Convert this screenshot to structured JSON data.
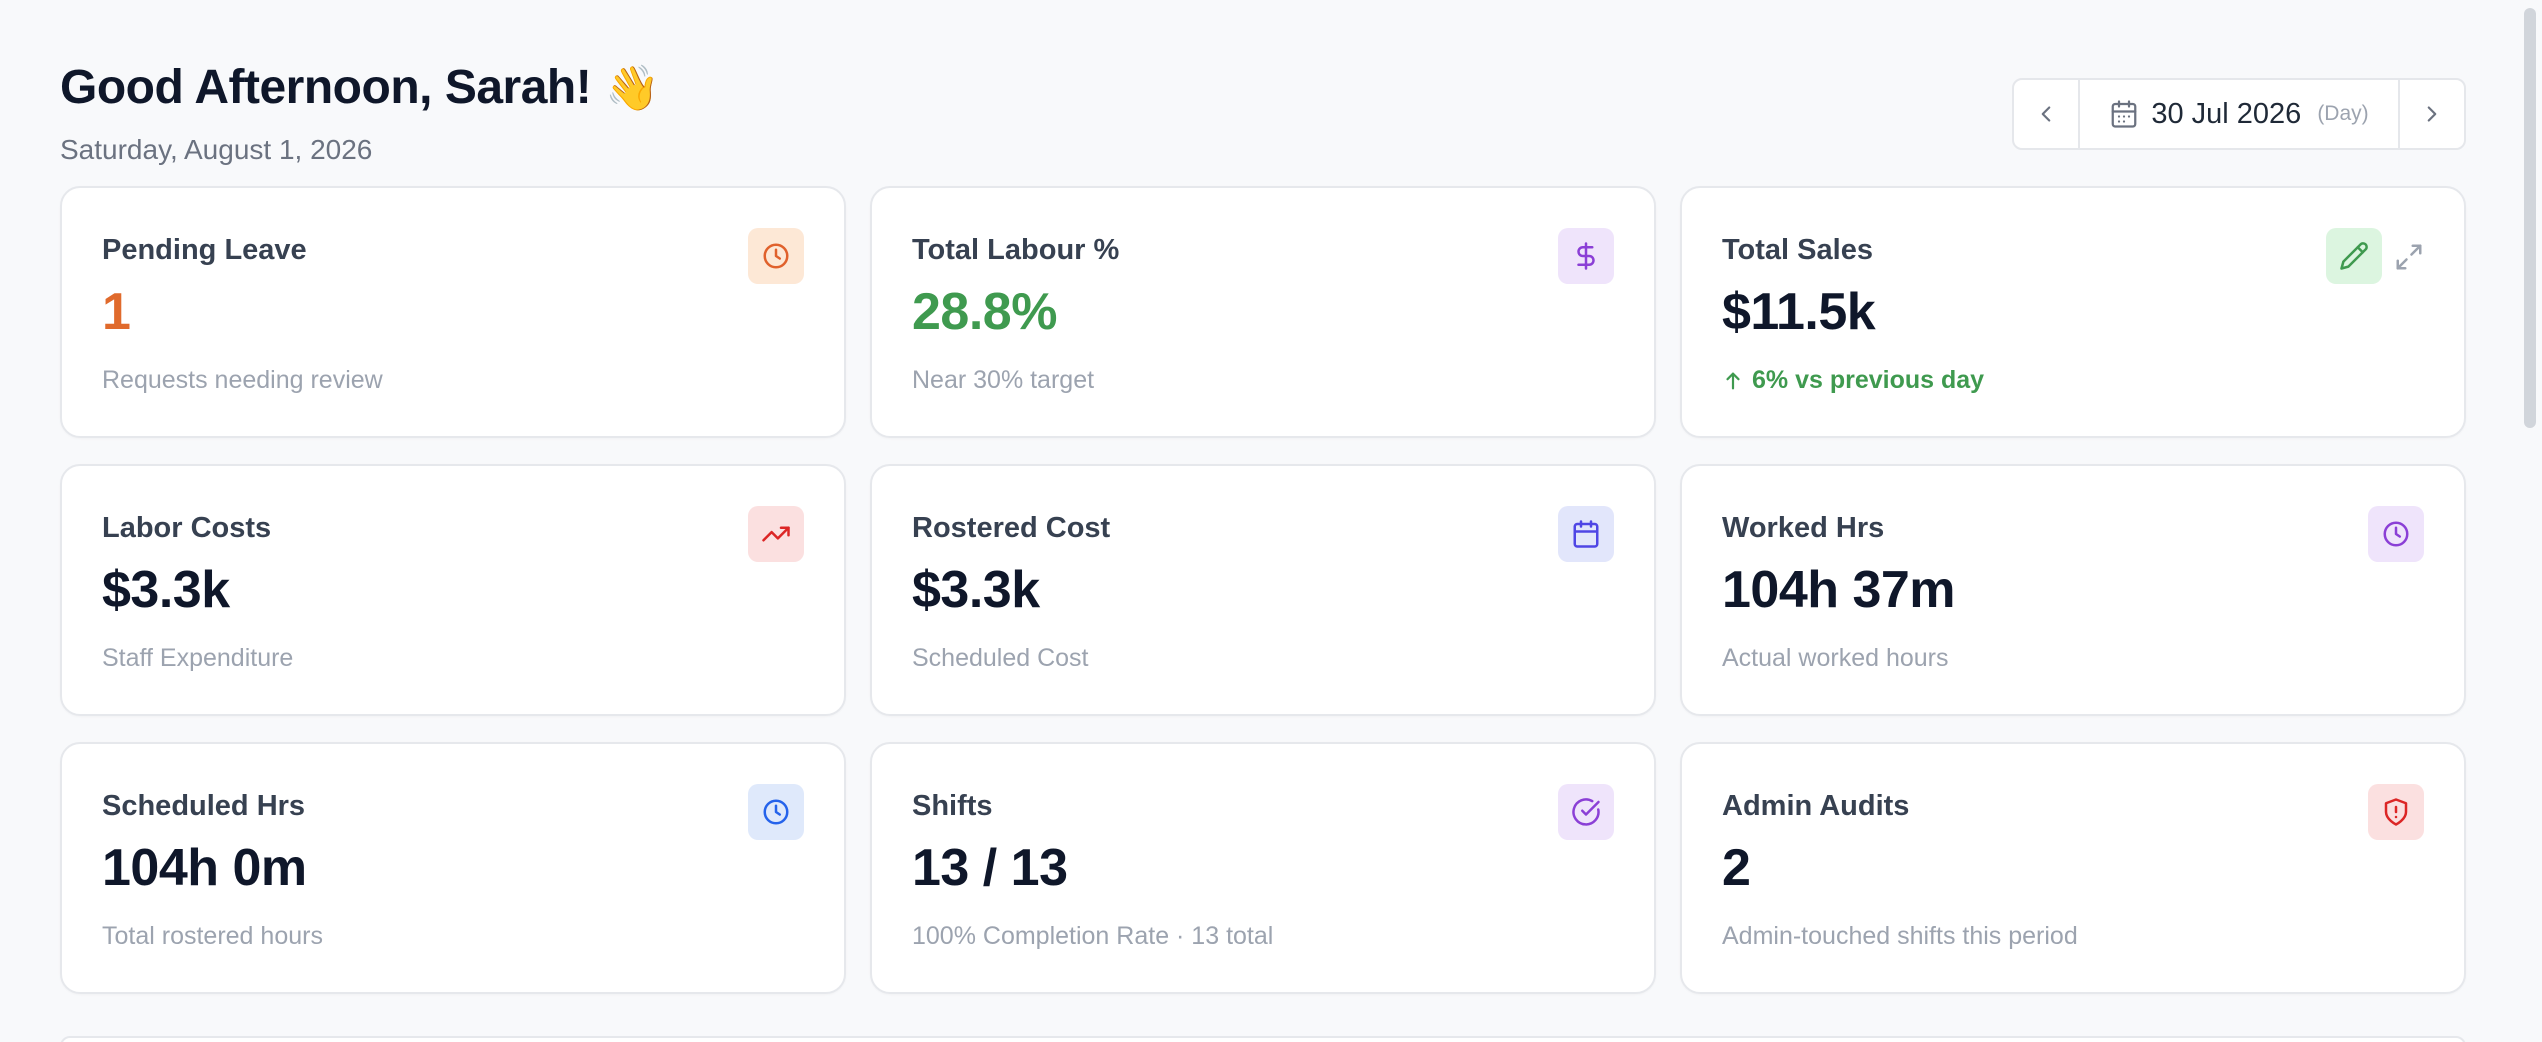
{
  "header": {
    "greeting": "Good Afternoon, Sarah!",
    "wave_emoji": "👋",
    "current_date": "Saturday, August 1, 2026"
  },
  "date_nav": {
    "prev_icon": "chevron-left-icon",
    "calendar_icon": "calendar-icon",
    "date_label": "30 Jul 2026",
    "mode_label": "(Day)",
    "next_icon": "chevron-right-icon"
  },
  "cards": [
    {
      "title": "Pending Leave",
      "value": "1",
      "subtitle": "Requests needing review",
      "icon": "clock-icon",
      "value_color": "#e06a2c"
    },
    {
      "title": "Total Labour %",
      "value": "28.8%",
      "subtitle": "Near 30% target",
      "icon": "dollar-icon",
      "value_color": "#3f9a4f"
    },
    {
      "title": "Total Sales",
      "value": "$11.5k",
      "subtitle": "6% vs previous day",
      "trend_icon": "arrow-up-icon",
      "icon": "pencil-icon",
      "secondary_icon": "expand-icon"
    },
    {
      "title": "Labor Costs",
      "value": "$3.3k",
      "subtitle": "Staff Expenditure",
      "icon": "trending-up-icon"
    },
    {
      "title": "Rostered Cost",
      "value": "$3.3k",
      "subtitle": "Scheduled Cost",
      "icon": "calendar-icon"
    },
    {
      "title": "Worked Hrs",
      "value": "104h 37m",
      "subtitle": "Actual worked hours",
      "icon": "clock-icon"
    },
    {
      "title": "Scheduled Hrs",
      "value": "104h 0m",
      "subtitle": "Total rostered hours",
      "icon": "clock-icon"
    },
    {
      "title": "Shifts",
      "value": "13 / 13",
      "subtitle": "100% Completion Rate · 13 total",
      "icon": "check-circle-icon"
    },
    {
      "title": "Admin Audits",
      "value": "2",
      "subtitle": "Admin-touched shifts this period",
      "icon": "shield-alert-icon"
    }
  ],
  "colors": {
    "accent_orange": "#e06a2c",
    "accent_green": "#3f9a4f",
    "text_primary": "#0f172a",
    "text_muted": "#9ca3af",
    "background": "#f8f9fb"
  }
}
